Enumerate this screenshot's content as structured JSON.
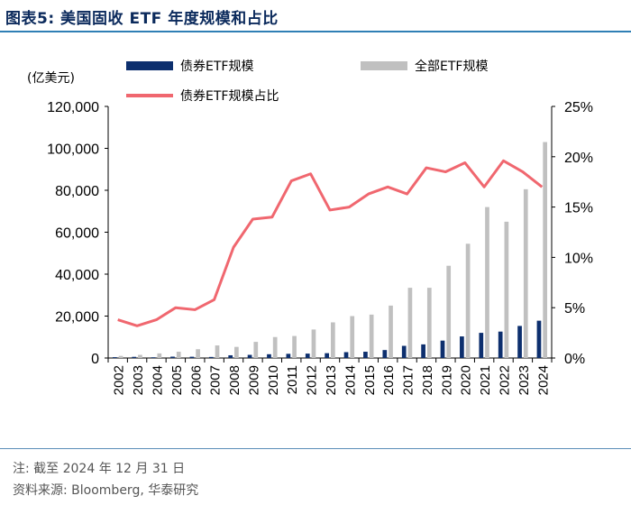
{
  "header": {
    "title": "图表5:  美国固收 ETF 年度规模和占比"
  },
  "footer": {
    "note": "注: 截至 2024 年 12 月 31 日",
    "source": "资料来源: Bloomberg, 华泰研究"
  },
  "chart_data": {
    "type": "bar",
    "title": "美国固收 ETF 年度规模和占比",
    "unit_label": "(亿美元)",
    "categories": [
      "2002",
      "2003",
      "2004",
      "2005",
      "2006",
      "2007",
      "2008",
      "2009",
      "2010",
      "2011",
      "2012",
      "2013",
      "2014",
      "2015",
      "2016",
      "2017",
      "2018",
      "2019",
      "2020",
      "2021",
      "2022",
      "2023",
      "2024"
    ],
    "series": [
      {
        "name": "债券ETF规模",
        "type": "bar",
        "axis": "left",
        "color": "#0d2f6e",
        "values": [
          400,
          550,
          350,
          650,
          600,
          500,
          1300,
          1500,
          1800,
          2000,
          2100,
          2300,
          2800,
          3000,
          3800,
          5800,
          6500,
          8300,
          10300,
          12000,
          12600,
          15300,
          17800
        ]
      },
      {
        "name": "全部ETF规模",
        "type": "bar",
        "axis": "left",
        "color": "#c0c0c0",
        "values": [
          1000,
          1500,
          2200,
          3000,
          4200,
          6000,
          5300,
          7700,
          10000,
          10500,
          13600,
          17000,
          20000,
          20700,
          25000,
          33500,
          33500,
          44000,
          54500,
          72000,
          65000,
          80500,
          103000
        ]
      },
      {
        "name": "债券ETF规模占比",
        "type": "line",
        "axis": "right",
        "color": "#f0676f",
        "values": [
          3.8,
          3.2,
          3.8,
          5.0,
          4.8,
          5.8,
          11.0,
          13.8,
          14.0,
          17.6,
          18.3,
          14.7,
          15.0,
          16.3,
          17.0,
          16.3,
          18.9,
          18.5,
          19.4,
          17.0,
          19.6,
          18.5,
          17.0
        ]
      }
    ],
    "y_left": {
      "min": 0,
      "max": 120000,
      "ticks": [
        0,
        20000,
        40000,
        60000,
        80000,
        100000,
        120000
      ],
      "tick_labels": [
        "0",
        "20,000",
        "40,000",
        "60,000",
        "80,000",
        "100,000",
        "120,000"
      ]
    },
    "y_right": {
      "min": 0,
      "max": 25,
      "ticks": [
        0,
        5,
        10,
        15,
        20,
        25
      ],
      "tick_labels": [
        "0%",
        "5%",
        "10%",
        "15%",
        "20%",
        "25%"
      ]
    },
    "legend_position": "top"
  }
}
